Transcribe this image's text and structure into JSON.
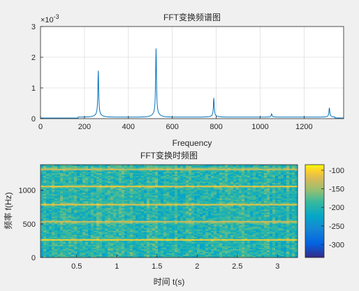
{
  "chart_data": [
    {
      "type": "line",
      "title": "FFT变换频谱图",
      "xlabel": "Frequency",
      "ylabel": "",
      "xlim": [
        0,
        1380
      ],
      "ylim": [
        0,
        3
      ],
      "y_exponent_label": "×10",
      "y_exponent_power": "-3",
      "x_ticks": [
        0,
        200,
        400,
        600,
        800,
        1000,
        1200
      ],
      "y_ticks": [
        0,
        1,
        2,
        3
      ],
      "grid": true,
      "line_color": "#0072bd",
      "series": [
        {
          "peaks": [
            {
              "x": 263,
              "y": 1.4
            },
            {
              "x": 526,
              "y": 2.07
            },
            {
              "x": 789,
              "y": 0.58
            },
            {
              "x": 1052,
              "y": 0.1
            },
            {
              "x": 1315,
              "y": 0.28
            }
          ]
        }
      ]
    },
    {
      "type": "heatmap",
      "title": "FFT变换时频图",
      "xlabel": "时间 t(s)",
      "ylabel": "频率 f(Hz)",
      "xlim": [
        0.05,
        3.25
      ],
      "ylim": [
        0,
        1380
      ],
      "x_ticks": [
        0.5,
        1,
        1.5,
        2,
        2.5,
        3
      ],
      "x_tick_labels": [
        "0.5",
        "1",
        "1.5",
        "2",
        "2.5",
        "3"
      ],
      "y_ticks": [
        0,
        500,
        1000
      ],
      "harmonic_bands_hz": [
        263,
        526,
        789,
        1052,
        1315
      ],
      "colorbar": {
        "range": [
          -335,
          -85
        ],
        "ticks": [
          -100,
          -150,
          -200,
          -250,
          -300
        ]
      }
    }
  ]
}
